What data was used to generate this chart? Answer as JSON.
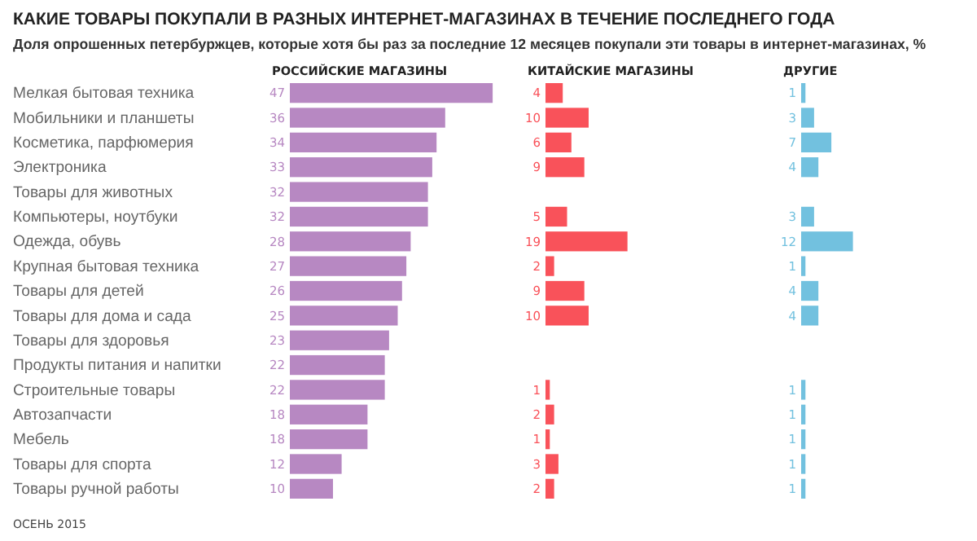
{
  "chart_data": [
    {
      "type": "other",
      "title": "КАКИЕ ТОВАРЫ ПОКУПАЛИ В РАЗНЫХ ИНТЕРНЕТ-МАГАЗИНАХ В ТЕЧЕНИЕ ПОСЛЕДНЕГО ГОДА",
      "subtitle": "Доля опрошенных петербуржцев, которые хотя бы раз за последние 12 месяцев покупали эти товары в интернет-магазинах, %",
      "annotations": [
        "ОСЕНЬ 2015"
      ]
    },
    {
      "type": "bar",
      "orientation": "horizontal",
      "title": "РОССИЙСКИЕ МАГАЗИНЫ",
      "data_labels": true,
      "tick_labels": "y",
      "categories": [
        "Мелкая бытовая техника",
        "Мобильники и планшеты",
        "Косметика, парфюмерия",
        "Электроника",
        "Товары для животных",
        "Компьютеры, ноутбуки",
        "Одежда, обувь",
        "Крупная бытовая техника",
        "Товары для детей",
        "Товары для дома и сада",
        "Товары для здоровья",
        "Продукты питания и напитки",
        "Строительные товары",
        "Автозапчасти",
        "Мебель",
        "Товары для спорта",
        "Товары ручной работы"
      ],
      "color": "#b788c2",
      "values": [
        47,
        36,
        34,
        33,
        32,
        32,
        28,
        27,
        26,
        25,
        23,
        22,
        22,
        18,
        18,
        12,
        10
      ]
    },
    {
      "type": "bar",
      "orientation": "horizontal",
      "title": "КИТАЙСКИЕ МАГАЗИНЫ",
      "data_labels": true,
      "tick_labels": false,
      "categories": [
        null,
        null,
        null,
        null,
        null,
        null,
        null,
        null,
        null,
        null,
        null,
        null,
        null,
        null,
        null,
        null,
        null
      ],
      "color": "#f9525a",
      "values": [
        4,
        10,
        6,
        9,
        null,
        5,
        19,
        2,
        9,
        10,
        null,
        null,
        1,
        2,
        1,
        3,
        2
      ]
    },
    {
      "type": "bar",
      "orientation": "horizontal",
      "title": "ДРУГИЕ",
      "data_labels": true,
      "tick_labels": false,
      "categories": [
        null,
        null,
        null,
        null,
        null,
        null,
        null,
        null,
        null,
        null,
        null,
        null,
        null,
        null,
        null,
        null,
        null
      ],
      "color": "#72c1df",
      "values": [
        1,
        3,
        7,
        4,
        null,
        3,
        12,
        1,
        4,
        4,
        null,
        null,
        1,
        1,
        1,
        1,
        1
      ]
    }
  ]
}
